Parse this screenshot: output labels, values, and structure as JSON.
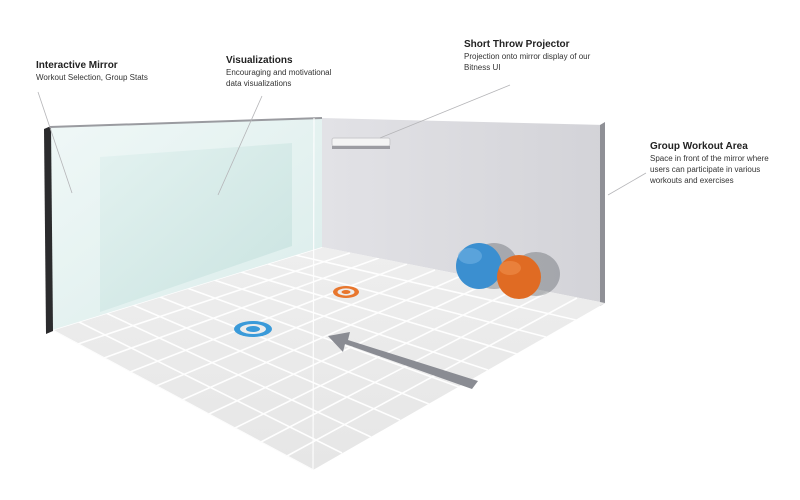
{
  "callouts": {
    "mirror": {
      "title": "Interactive Mirror",
      "description": "Workout Selection, Group Stats"
    },
    "visualizations": {
      "title": "Visualizations",
      "description_line1": "Encouraging and motivational",
      "description_line2": "data visualizations"
    },
    "projector": {
      "title": "Short Throw Projector",
      "description_line1": "Projection onto mirror display of our",
      "description_line2": "Bitness UI"
    },
    "group_area": {
      "title": "Group Workout Area",
      "description_line1": "Space in front of the mirror where",
      "description_line2": "users can participate in various",
      "description_line3": "workouts and exercises"
    }
  },
  "colors": {
    "floor": "#ececec",
    "back_wall": "#d9d9de",
    "mirror_glass": "#dff0ee",
    "blue_marker": "#3a9ad9",
    "orange_marker": "#e8762d",
    "blue_ball": "#3b8fd0",
    "orange_ball": "#e06b23",
    "arrow": "#8a8c93"
  },
  "icons": {
    "blue_target": "blue-target-marker-icon",
    "orange_target": "orange-target-marker-icon",
    "arrow": "direction-arrow-icon"
  }
}
